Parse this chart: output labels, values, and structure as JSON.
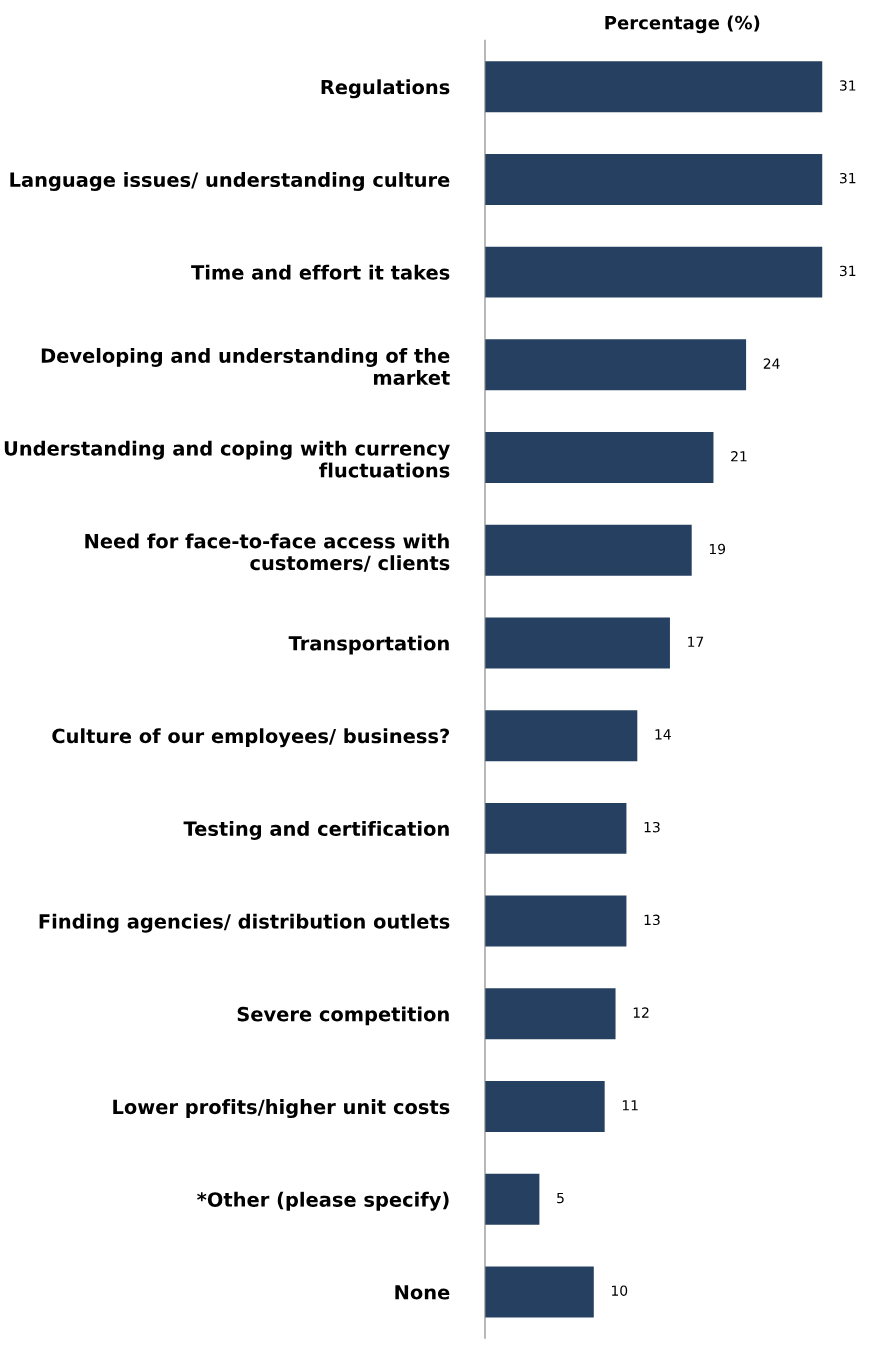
{
  "chart_data": {
    "type": "bar",
    "orientation": "horizontal",
    "xlabel": "Percentage (%)",
    "categories": [
      "Regulations",
      "Language issues/ understanding culture",
      "Time and effort it takes",
      "Developing and understanding of the market",
      "Understanding and coping with currency fluctuations",
      "Need for face-to-face access with customers/ clients",
      "Transportation",
      "Culture of our employees/ business?",
      "Testing and certification",
      "Finding agencies/ distribution outlets",
      "Severe competition",
      "Lower profits/higher unit costs",
      "*Other (please specify)",
      "None"
    ],
    "values": [
      31,
      31,
      31,
      24,
      21,
      19,
      17,
      14,
      13,
      13,
      12,
      11,
      5,
      10
    ],
    "color": "#264061",
    "data_labels": true,
    "grid": false,
    "legend": false
  }
}
